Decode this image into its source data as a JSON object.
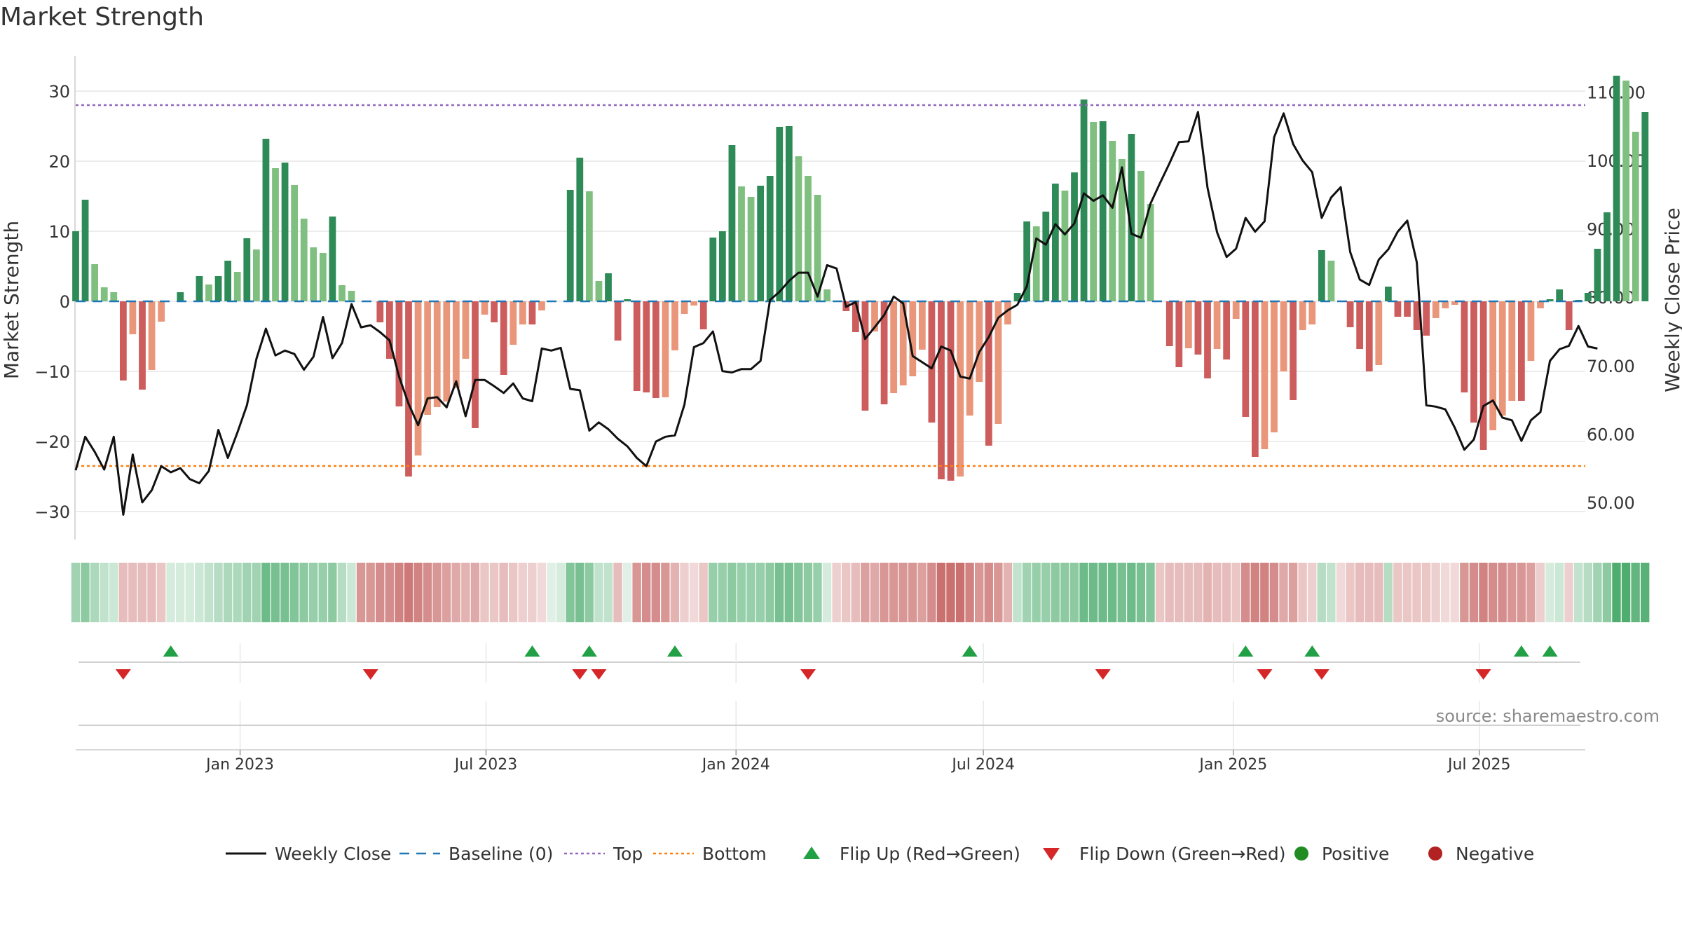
{
  "page": {
    "title": "Market Strength",
    "source": "source: sharemaestro.com"
  },
  "colors": {
    "strong_green": "#2e8b57",
    "light_green": "#7fbf7f",
    "strong_red": "#cd5c5c",
    "light_red": "#e9967a",
    "line": "#111111",
    "baseline": "#1f77b4",
    "top": "#9467bd",
    "bottom": "#ff7f0e",
    "flip_up": "#22a045",
    "flip_down": "#d62728",
    "positive": "#228b22",
    "negative": "#b22222",
    "grid": "#e6e6e6"
  },
  "chart_data": {
    "type": "bar",
    "title": "Market Strength",
    "ylabel": "Market Strength",
    "y2label": "Weekly Close Price",
    "ylim": [
      -34,
      35
    ],
    "y2lim": [
      44.56,
      115.28
    ],
    "yticks": [
      30,
      20,
      10,
      0,
      -10,
      -20,
      -30
    ],
    "ytick_labels": [
      "30",
      "20",
      "10",
      "0",
      "−10",
      "−20",
      "−30"
    ],
    "y2ticks": [
      110,
      100,
      90,
      80,
      70,
      60,
      50
    ],
    "y2tick_labels": [
      "110.00",
      "100.00",
      "90.00",
      "80.00",
      "70.00",
      "60.00",
      "50.00"
    ],
    "x_date_start": "2022-09-02",
    "x_date_end": "2025-09-17",
    "week_days": 7,
    "xticks": [
      {
        "date": "2023-01-01",
        "label": "Jan 2023"
      },
      {
        "date": "2023-07-01",
        "label": "Jul 2023"
      },
      {
        "date": "2024-01-01",
        "label": "Jan 2024"
      },
      {
        "date": "2024-07-01",
        "label": "Jul 2024"
      },
      {
        "date": "2025-01-01",
        "label": "Jan 2025"
      },
      {
        "date": "2025-07-01",
        "label": "Jul 2025"
      }
    ],
    "top_line": 28,
    "bottom_line": -23.5,
    "strength": [
      10,
      14.5,
      5.3,
      2,
      1.3,
      -11.3,
      -4.7,
      -12.6,
      -9.8,
      -2.9,
      0,
      1.3,
      0,
      3.6,
      2.4,
      3.6,
      5.8,
      4.2,
      9,
      7.4,
      23.2,
      19,
      19.8,
      16.6,
      11.8,
      7.7,
      6.9,
      12.1,
      2.3,
      1.5,
      0,
      0,
      -3,
      -8.2,
      -15,
      -25,
      -22,
      -16.2,
      -15.1,
      -14.3,
      -12.4,
      -8.2,
      -18.1,
      -1.9,
      -3,
      -10.5,
      -6.2,
      -3.3,
      -3.3,
      -1.3,
      0,
      0,
      15.9,
      20.5,
      15.7,
      2.9,
      4,
      -5.6,
      0.3,
      -12.8,
      -13,
      -13.8,
      -13.7,
      -7,
      -1.8,
      -0.6,
      -4,
      9.1,
      10,
      22.3,
      16.4,
      14.9,
      16.5,
      17.9,
      24.9,
      25,
      20.7,
      17.9,
      15.2,
      1.7,
      0,
      -1.4,
      -4.4,
      -15.6,
      -4.3,
      -14.7,
      -13.1,
      -12,
      -10.7,
      -6.9,
      -17.3,
      -25.4,
      -25.6,
      -25,
      -16.3,
      -11.5,
      -20.6,
      -17.5,
      -3.3,
      1.2,
      11.4,
      10.7,
      12.8,
      16.8,
      15.8,
      18.4,
      28.8,
      25.6,
      25.7,
      22.9,
      20.3,
      23.9,
      18.6,
      13.9,
      0,
      -6.4,
      -9.4,
      -6.7,
      -7.6,
      -11,
      -6.8,
      -8.3,
      -2.5,
      -16.5,
      -22.2,
      -21.1,
      -18.7,
      -10,
      -14.1,
      -4.1,
      -3.3,
      7.3,
      5.8,
      0,
      -3.7,
      -6.8,
      -10,
      -9.1,
      2.1,
      -2.2,
      -2.2,
      -4.1,
      -4.9,
      -2.4,
      -1,
      -0.5,
      -13,
      -17.3,
      -21.2,
      -18.4,
      -16.3,
      -14.2,
      -14.2,
      -8.5,
      -1,
      0.3,
      1.7,
      -4.1,
      0.2,
      1.2,
      7.5,
      12.7,
      32.2,
      31.5,
      24.2,
      27
    ],
    "price": [
      54.7,
      59.6,
      57.4,
      54.8,
      59.6,
      48.2,
      57,
      50,
      51.8,
      55.3,
      54.4,
      55,
      53.4,
      52.8,
      54.6,
      60.6,
      56.5,
      60.2,
      64.2,
      71,
      75.4,
      71.5,
      72.2,
      71.7,
      69.4,
      71.3,
      77.1,
      71.1,
      73.3,
      79,
      75.6,
      75.9,
      74.9,
      73.7,
      68.4,
      64.4,
      61.3,
      65.2,
      65.4,
      63.9,
      67.7,
      62.6,
      67.9,
      67.9,
      67,
      66,
      67.4,
      65.2,
      64.8,
      72.5,
      72.2,
      72.6,
      66.6,
      66.4,
      60.5,
      61.7,
      60.7,
      59.3,
      58.2,
      56.5,
      55.3,
      58.9,
      59.6,
      59.8,
      64.3,
      72.7,
      73.3,
      75,
      69.2,
      69,
      69.5,
      69.5,
      70.7,
      79.6,
      80.8,
      82.4,
      83.6,
      83.6,
      80.1,
      84.7,
      84.2,
      78.6,
      79.3,
      73.9,
      75.6,
      77.4,
      80.1,
      79.1,
      71.4,
      70.5,
      69.6,
      72.8,
      72.2,
      68.4,
      68.1,
      72,
      74.2,
      77,
      78.1,
      78.9,
      81.6,
      88.6,
      87.7,
      90.7,
      89.2,
      90.8,
      95.2,
      94.1,
      94.9,
      93.1,
      99,
      89.3,
      88.7,
      93.7,
      96.7,
      99.6,
      102.7,
      102.8,
      107.1,
      96,
      89.5,
      85.9,
      87.1,
      91.6,
      89.6,
      91.1,
      103.4,
      106.9,
      102.4,
      100,
      98.3,
      91.6,
      94.6,
      96.1,
      86.6,
      82.6,
      81.8,
      85.5,
      87,
      89.6,
      91.2,
      85.1,
      64.2,
      64,
      63.6,
      60.9,
      57.7,
      59.2,
      64.1,
      64.9,
      62.4,
      62,
      59,
      62,
      63.2,
      70.7,
      72.4,
      72.9,
      75.8,
      72.8,
      72.5
    ],
    "heat_intensity": [
      0.45,
      0.55,
      0.4,
      0.3,
      0.25,
      -0.35,
      -0.35,
      -0.35,
      -0.35,
      -0.3,
      0.2,
      0.2,
      0.2,
      0.25,
      0.3,
      0.35,
      0.4,
      0.4,
      0.45,
      0.45,
      0.7,
      0.65,
      0.65,
      0.6,
      0.55,
      0.5,
      0.5,
      0.55,
      0.35,
      0.25,
      -0.55,
      -0.55,
      -0.6,
      -0.6,
      -0.65,
      -0.7,
      -0.65,
      -0.6,
      -0.55,
      -0.5,
      -0.45,
      -0.4,
      -0.45,
      -0.3,
      -0.3,
      -0.35,
      -0.3,
      -0.25,
      -0.25,
      -0.2,
      0.15,
      0.2,
      0.6,
      0.65,
      0.55,
      0.3,
      0.3,
      -0.35,
      0.15,
      -0.55,
      -0.6,
      -0.6,
      -0.55,
      -0.4,
      -0.25,
      -0.2,
      -0.3,
      0.5,
      0.5,
      0.55,
      0.5,
      0.5,
      0.5,
      0.55,
      0.65,
      0.65,
      0.6,
      0.55,
      0.5,
      0.2,
      -0.25,
      -0.3,
      -0.35,
      -0.5,
      -0.45,
      -0.55,
      -0.55,
      -0.55,
      -0.55,
      -0.5,
      -0.6,
      -0.75,
      -0.75,
      -0.75,
      -0.65,
      -0.55,
      -0.6,
      -0.55,
      -0.4,
      0.3,
      0.45,
      0.5,
      0.5,
      0.55,
      0.55,
      0.55,
      0.7,
      0.7,
      0.7,
      0.7,
      0.65,
      0.7,
      0.65,
      0.6,
      -0.3,
      -0.35,
      -0.35,
      -0.35,
      -0.35,
      -0.4,
      -0.35,
      -0.35,
      -0.3,
      -0.6,
      -0.65,
      -0.65,
      -0.6,
      -0.45,
      -0.5,
      -0.3,
      -0.25,
      0.35,
      0.3,
      -0.2,
      -0.3,
      -0.35,
      -0.35,
      -0.35,
      0.35,
      -0.3,
      -0.3,
      -0.3,
      -0.3,
      -0.25,
      -0.2,
      -0.2,
      -0.55,
      -0.6,
      -0.65,
      -0.6,
      -0.6,
      -0.55,
      -0.55,
      -0.5,
      -0.25,
      0.2,
      0.25,
      -0.25,
      0.3,
      0.35,
      0.45,
      0.55,
      0.85,
      0.85,
      0.75,
      0.8
    ],
    "flip_up_weeks": [
      10,
      48,
      54,
      63,
      94,
      123,
      130,
      152,
      155
    ],
    "flip_down_weeks": [
      5,
      31,
      53,
      55,
      77,
      108,
      125,
      131,
      148
    ],
    "legend": [
      {
        "key": "weekly_close",
        "label": "Weekly Close"
      },
      {
        "key": "baseline",
        "label": "Baseline (0)"
      },
      {
        "key": "top",
        "label": "Top"
      },
      {
        "key": "bottom",
        "label": "Bottom"
      },
      {
        "key": "flip_up",
        "label": "Flip Up (Red→Green)"
      },
      {
        "key": "flip_down",
        "label": "Flip Down (Green→Red)"
      },
      {
        "key": "positive",
        "label": "Positive"
      },
      {
        "key": "negative",
        "label": "Negative"
      }
    ],
    "legend_position": "bottom"
  }
}
